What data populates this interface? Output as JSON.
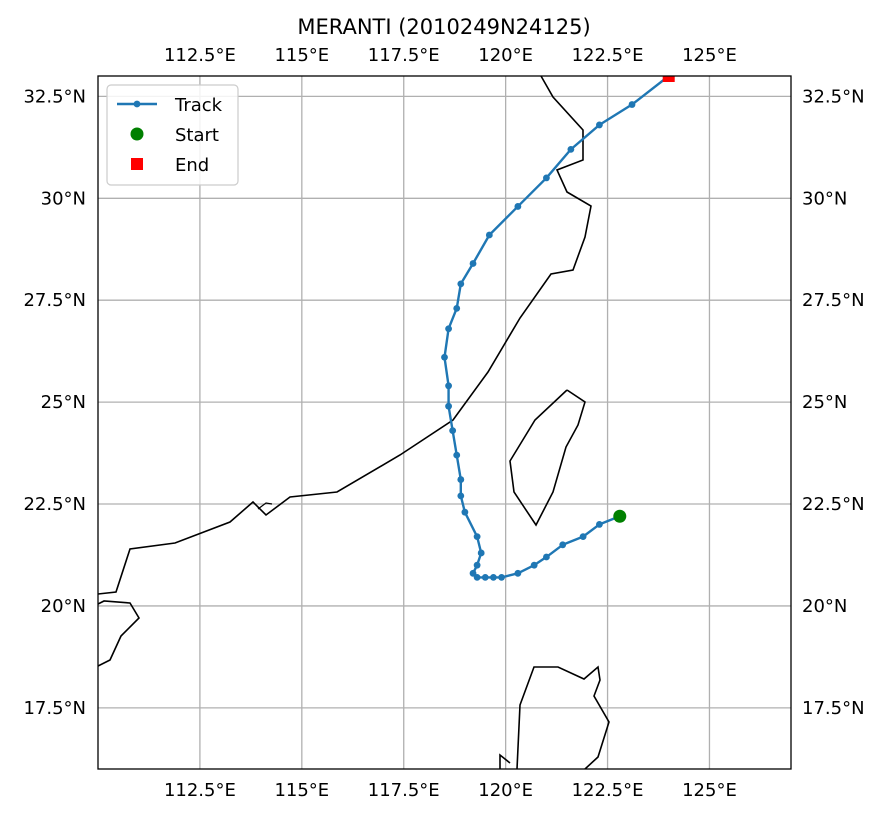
{
  "chart_data": {
    "type": "line",
    "title": "MERANTI (2010249N24125)",
    "xlabel": "",
    "ylabel": "",
    "xlim": [
      110,
      127
    ],
    "ylim": [
      16,
      33
    ],
    "grid": true,
    "legend_position": "top-left",
    "x_ticks": [
      112.5,
      115,
      117.5,
      120,
      122.5,
      125
    ],
    "x_tick_labels": [
      "112.5°E",
      "115°E",
      "117.5°E",
      "120°E",
      "122.5°E",
      "125°E"
    ],
    "y_ticks": [
      17.5,
      20,
      22.5,
      25,
      27.5,
      30,
      32.5
    ],
    "y_tick_labels": [
      "17.5°N",
      "20°N",
      "22.5°N",
      "25°N",
      "27.5°N",
      "30°N",
      "32.5°N"
    ],
    "legend": [
      "Track",
      "Start",
      "End"
    ],
    "colors": {
      "track": "#1f77b4",
      "start": "#008000",
      "end": "#ff0000",
      "coast": "#000000",
      "grid": "#b0b0b0"
    },
    "series": [
      {
        "name": "Track",
        "x": [
          122.8,
          122.3,
          121.9,
          121.4,
          121.0,
          120.7,
          120.3,
          119.9,
          119.7,
          119.5,
          119.3,
          119.2,
          119.3,
          119.4,
          119.3,
          119.0,
          118.9,
          118.9,
          118.8,
          118.7,
          118.6,
          118.6,
          118.5,
          118.6,
          118.8,
          118.9,
          119.2,
          119.6,
          120.3,
          121.0,
          121.6,
          122.3,
          123.1,
          124.0
        ],
        "y": [
          22.2,
          22.0,
          21.7,
          21.5,
          21.2,
          21.0,
          20.8,
          20.7,
          20.7,
          20.7,
          20.7,
          20.8,
          21.0,
          21.3,
          21.7,
          22.3,
          22.7,
          23.1,
          23.7,
          24.3,
          24.9,
          25.4,
          26.1,
          26.8,
          27.3,
          27.9,
          28.4,
          29.1,
          29.8,
          30.5,
          31.2,
          31.8,
          32.3,
          33.0
        ]
      }
    ],
    "start": {
      "x": 122.8,
      "y": 22.2
    },
    "end": {
      "x": 124.0,
      "y": 33.0
    }
  }
}
